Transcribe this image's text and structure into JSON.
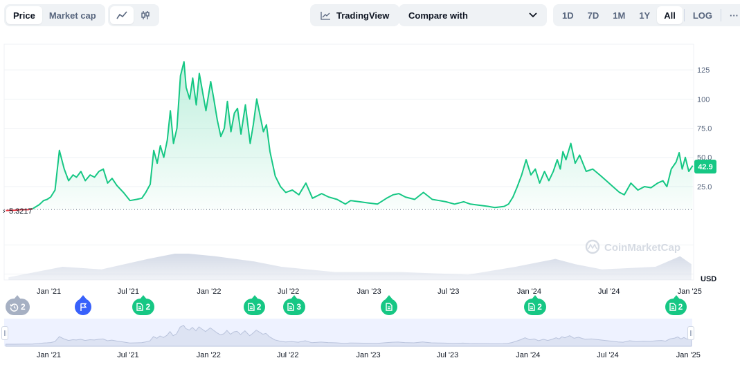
{
  "toolbar": {
    "price_tab": "Price",
    "market_cap_tab": "Market cap",
    "line_icon": "line-chart-icon",
    "candle_icon": "candlestick-icon",
    "tradingview_label": "TradingView",
    "compare_label": "Compare with",
    "ranges": [
      "1D",
      "7D",
      "1M",
      "1Y",
      "All"
    ],
    "active_range": "All",
    "log_label": "LOG",
    "more_label": "···"
  },
  "current_price_label": "42.9",
  "start_price_label": "5.3217",
  "watermark": "CoinMarketCap",
  "currency_label": "USD",
  "events": [
    {
      "type": "history",
      "label": "2",
      "date": "2020-10-20",
      "color": "#a6b0c3"
    },
    {
      "type": "flag",
      "label": "",
      "date": "2021-03-20",
      "color": "#3861fb"
    },
    {
      "type": "doc",
      "label": "2",
      "date": "2021-08-05",
      "color": "#16c784"
    },
    {
      "type": "doc",
      "label": "2",
      "date": "2022-04-15",
      "color": "#16c784"
    },
    {
      "type": "doc",
      "label": "3",
      "date": "2022-07-15",
      "color": "#16c784"
    },
    {
      "type": "doc",
      "label": "",
      "date": "2023-02-15",
      "color": "#16c784"
    },
    {
      "type": "doc",
      "label": "2",
      "date": "2024-01-15",
      "color": "#16c784"
    },
    {
      "type": "doc",
      "label": "2",
      "date": "2024-12-01",
      "color": "#16c784"
    }
  ],
  "colors": {
    "line": "#16c784",
    "start_segment": "#ea3943",
    "grid": "#eff2f5",
    "volume": "#cfd6e4",
    "navigator_bg": "#eef2ff",
    "navigator_line": "#b9c3dc"
  },
  "chart_data": {
    "type": "area",
    "title": "",
    "xlabel": "",
    "ylabel": "USD",
    "xlim": [
      "2020-09-21",
      "2025-01-10"
    ],
    "ylim": [
      -55,
      147
    ],
    "yticks": [
      25,
      50,
      75,
      100,
      125
    ],
    "ytick_labels": [
      "25.0",
      "50.0",
      "75.0",
      "100",
      "125"
    ],
    "xticks": [
      "2021-01-01",
      "2021-07-01",
      "2022-01-01",
      "2022-07-01",
      "2023-01-01",
      "2023-07-01",
      "2024-01-01",
      "2024-07-01",
      "2025-01-01"
    ],
    "xtick_labels": [
      "Jan '21",
      "Jul '21",
      "Jan '22",
      "Jul '22",
      "Jan '23",
      "Jul '23",
      "Jan '24",
      "Jul '24",
      "Jan '25"
    ],
    "grid": true,
    "start_price": 5.3217,
    "current_price": 42.9,
    "series": [
      {
        "name": "",
        "x": [
          "2020-09-25",
          "2020-10-15",
          "2020-11-01",
          "2020-11-15",
          "2020-11-25",
          "2020-12-10",
          "2020-12-20",
          "2020-12-28",
          "2021-01-05",
          "2021-01-15",
          "2021-01-25",
          "2021-02-05",
          "2021-02-15",
          "2021-02-25",
          "2021-03-05",
          "2021-03-15",
          "2021-03-25",
          "2021-04-05",
          "2021-04-15",
          "2021-04-25",
          "2021-05-05",
          "2021-05-15",
          "2021-05-25",
          "2021-06-05",
          "2021-06-20",
          "2021-07-05",
          "2021-07-20",
          "2021-08-01",
          "2021-08-10",
          "2021-08-20",
          "2021-08-28",
          "2021-09-05",
          "2021-09-12",
          "2021-09-20",
          "2021-09-28",
          "2021-10-05",
          "2021-10-12",
          "2021-10-20",
          "2021-10-28",
          "2021-11-05",
          "2021-11-10",
          "2021-11-18",
          "2021-11-25",
          "2021-12-03",
          "2021-12-10",
          "2021-12-18",
          "2021-12-25",
          "2022-01-05",
          "2022-01-12",
          "2022-01-20",
          "2022-01-28",
          "2022-02-05",
          "2022-02-12",
          "2022-02-20",
          "2022-02-28",
          "2022-03-07",
          "2022-03-15",
          "2022-03-25",
          "2022-04-05",
          "2022-04-12",
          "2022-04-20",
          "2022-04-28",
          "2022-05-05",
          "2022-05-12",
          "2022-05-20",
          "2022-06-01",
          "2022-06-13",
          "2022-06-25",
          "2022-07-10",
          "2022-07-25",
          "2022-08-10",
          "2022-08-25",
          "2022-09-15",
          "2022-10-01",
          "2022-10-20",
          "2022-11-08",
          "2022-11-20",
          "2022-12-10",
          "2022-12-30",
          "2023-01-20",
          "2023-02-10",
          "2023-02-25",
          "2023-03-10",
          "2023-03-25",
          "2023-04-15",
          "2023-05-05",
          "2023-05-25",
          "2023-06-10",
          "2023-06-25",
          "2023-07-15",
          "2023-08-05",
          "2023-08-20",
          "2023-09-10",
          "2023-09-30",
          "2023-10-15",
          "2023-10-25",
          "2023-11-05",
          "2023-11-15",
          "2023-11-25",
          "2023-12-05",
          "2023-12-15",
          "2023-12-25",
          "2024-01-05",
          "2024-01-15",
          "2024-01-25",
          "2024-02-05",
          "2024-02-15",
          "2024-02-25",
          "2024-03-05",
          "2024-03-12",
          "2024-03-18",
          "2024-03-25",
          "2024-04-05",
          "2024-04-15",
          "2024-04-25",
          "2024-05-10",
          "2024-05-25",
          "2024-06-10",
          "2024-06-25",
          "2024-07-10",
          "2024-07-25",
          "2024-08-05",
          "2024-08-20",
          "2024-09-05",
          "2024-09-20",
          "2024-10-05",
          "2024-10-20",
          "2024-11-01",
          "2024-11-10",
          "2024-11-20",
          "2024-12-01",
          "2024-12-08",
          "2024-12-15",
          "2024-12-22",
          "2024-12-30",
          "2025-01-08"
        ],
        "y": [
          4.5,
          4.8,
          5.3,
          5.2,
          6.0,
          9.5,
          13,
          14,
          16,
          22,
          56,
          40,
          30,
          35,
          33,
          38,
          30,
          35,
          33,
          38,
          40,
          28,
          32,
          26,
          20,
          13,
          14,
          15,
          20,
          27,
          56,
          45,
          60,
          50,
          65,
          90,
          62,
          75,
          120,
          132,
          110,
          100,
          118,
          95,
          122,
          105,
          90,
          115,
          100,
          82,
          68,
          75,
          98,
          72,
          88,
          92,
          70,
          95,
          62,
          78,
          100,
          85,
          72,
          78,
          55,
          34,
          25,
          20,
          22,
          18,
          28,
          15,
          19,
          16,
          14,
          10,
          13,
          12,
          11,
          10,
          15,
          18,
          19,
          16,
          14,
          20,
          14,
          13,
          12,
          10,
          12,
          10,
          9,
          8,
          7,
          7.5,
          8,
          10,
          16,
          25,
          35,
          48,
          35,
          40,
          28,
          38,
          30,
          38,
          48,
          40,
          55,
          48,
          62,
          45,
          52,
          38,
          40,
          35,
          30,
          25,
          20,
          18,
          28,
          22,
          25,
          24,
          28,
          30,
          25,
          40,
          46,
          54,
          40,
          50,
          38,
          42.9
        ]
      },
      {
        "name": "",
        "values_note": "",
        "x": [
          "2020-10-01",
          "2021-02-01",
          "2021-05-01",
          "2021-08-15",
          "2021-10-15",
          "2021-11-15",
          "2022-01-15",
          "2022-04-15",
          "2022-06-15",
          "2022-10-15",
          "2023-03-15",
          "2023-08-15",
          "2023-12-01",
          "2024-03-01",
          "2024-04-15",
          "2024-06-15",
          "2024-10-15",
          "2024-12-10",
          "2025-01-05"
        ],
        "y": [
          0.1,
          0.5,
          0.4,
          0.8,
          1.0,
          1.0,
          0.9,
          0.7,
          0.5,
          0.3,
          0.3,
          0.2,
          0.5,
          0.8,
          0.6,
          0.4,
          0.5,
          0.9,
          0.6
        ]
      }
    ]
  }
}
